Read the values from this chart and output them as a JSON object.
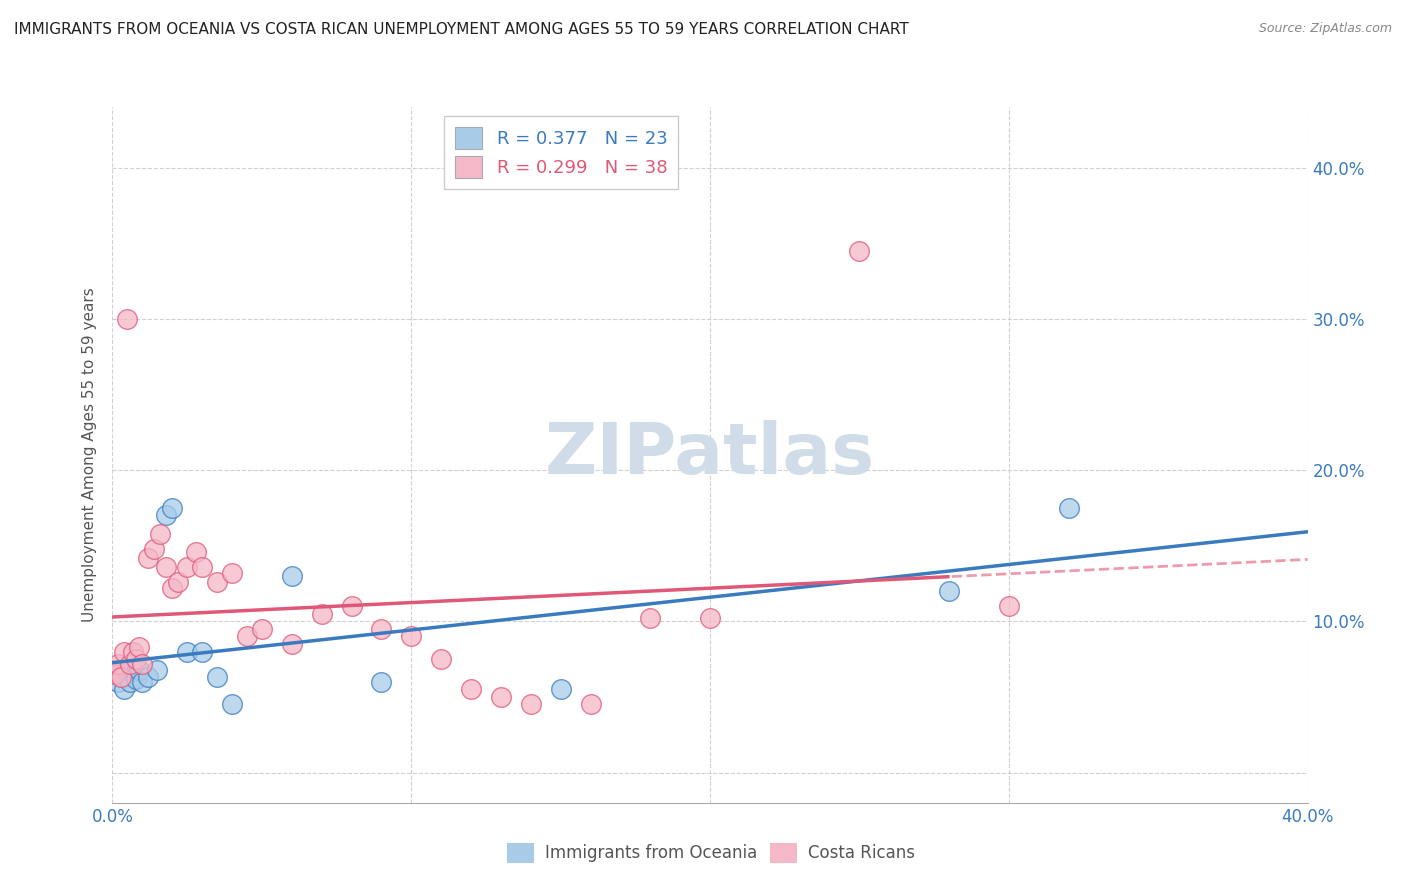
{
  "title": "IMMIGRANTS FROM OCEANIA VS COSTA RICAN UNEMPLOYMENT AMONG AGES 55 TO 59 YEARS CORRELATION CHART",
  "source": "Source: ZipAtlas.com",
  "ylabel": "Unemployment Among Ages 55 to 59 years",
  "xlabel_blue": "Immigrants from Oceania",
  "xlabel_pink": "Costa Ricans",
  "xlim": [
    0.0,
    0.4
  ],
  "ylim": [
    -0.02,
    0.44
  ],
  "yticks": [
    0.0,
    0.1,
    0.2,
    0.3,
    0.4
  ],
  "xticks": [
    0.0,
    0.1,
    0.2,
    0.3,
    0.4
  ],
  "xtick_labels": [
    "0.0%",
    "",
    "",
    "",
    "40.0%"
  ],
  "ytick_labels_right": [
    "",
    "10.0%",
    "20.0%",
    "30.0%",
    "40.0%"
  ],
  "R_blue": 0.377,
  "N_blue": 23,
  "R_pink": 0.299,
  "N_pink": 38,
  "blue_color": "#a8cce8",
  "pink_color": "#f5b8c8",
  "line_blue": "#3a7bbf",
  "line_pink": "#e05878",
  "blue_scatter_x": [
    0.0,
    0.002,
    0.003,
    0.004,
    0.005,
    0.006,
    0.007,
    0.008,
    0.009,
    0.01,
    0.012,
    0.015,
    0.018,
    0.02,
    0.025,
    0.03,
    0.035,
    0.04,
    0.06,
    0.09,
    0.15,
    0.28,
    0.32
  ],
  "blue_scatter_y": [
    0.065,
    0.06,
    0.065,
    0.055,
    0.068,
    0.06,
    0.072,
    0.062,
    0.068,
    0.06,
    0.063,
    0.068,
    0.17,
    0.175,
    0.08,
    0.08,
    0.063,
    0.045,
    0.13,
    0.06,
    0.055,
    0.12,
    0.175
  ],
  "pink_scatter_x": [
    0.0,
    0.001,
    0.002,
    0.003,
    0.004,
    0.005,
    0.006,
    0.007,
    0.008,
    0.009,
    0.01,
    0.012,
    0.014,
    0.016,
    0.018,
    0.02,
    0.022,
    0.025,
    0.028,
    0.03,
    0.035,
    0.04,
    0.045,
    0.05,
    0.06,
    0.07,
    0.08,
    0.09,
    0.1,
    0.11,
    0.12,
    0.13,
    0.14,
    0.16,
    0.18,
    0.2,
    0.25,
    0.3
  ],
  "pink_scatter_y": [
    0.068,
    0.065,
    0.072,
    0.063,
    0.08,
    0.3,
    0.072,
    0.08,
    0.075,
    0.083,
    0.072,
    0.142,
    0.148,
    0.158,
    0.136,
    0.122,
    0.126,
    0.136,
    0.146,
    0.136,
    0.126,
    0.132,
    0.09,
    0.095,
    0.085,
    0.105,
    0.11,
    0.095,
    0.09,
    0.075,
    0.055,
    0.05,
    0.045,
    0.045,
    0.102,
    0.102,
    0.345,
    0.11
  ],
  "background_color": "#ffffff",
  "grid_color": "#cccccc",
  "title_color": "#222222",
  "axis_label_color": "#555555",
  "tick_color": "#3a7bbf",
  "watermark_text": "ZIPatlas",
  "watermark_color": "#d0dce8"
}
